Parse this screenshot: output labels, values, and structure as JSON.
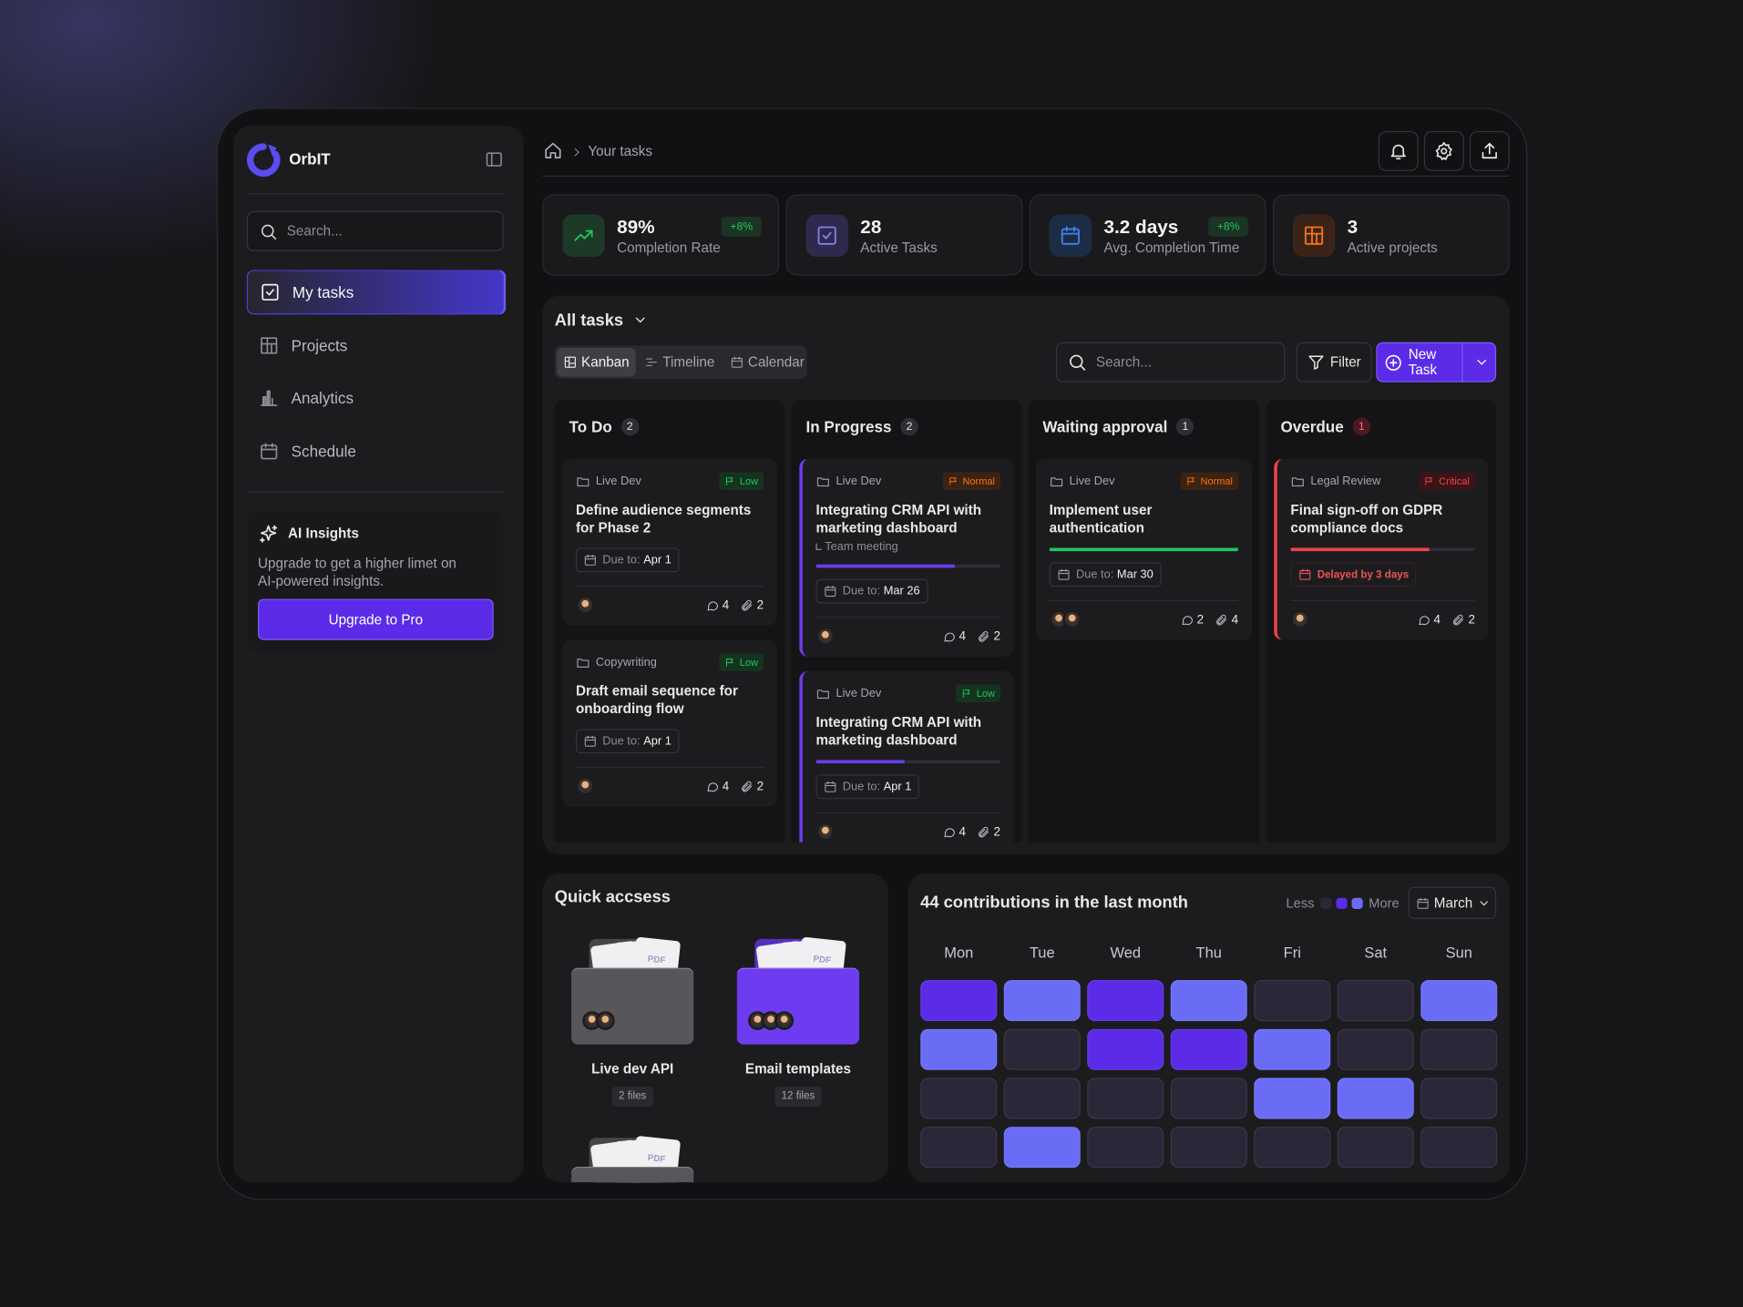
{
  "sidebar": {
    "brand": "OrbIT",
    "search_placeholder": "Search...",
    "nav": [
      "My tasks",
      "Projects",
      "Analytics",
      "Schedule"
    ],
    "insights": {
      "title": "AI Insights",
      "text": "Upgrade to get a higher limet on AI-powered insights.",
      "button": "Upgrade to Pro"
    }
  },
  "breadcrumb": {
    "current": "Your tasks"
  },
  "stats": [
    {
      "value": "89%",
      "label": "Completion Rate",
      "change": "+8%"
    },
    {
      "value": "28",
      "label": "Active Tasks"
    },
    {
      "value": "3.2 days",
      "label": "Avg. Completion Time",
      "change": "+8%"
    },
    {
      "value": "3",
      "label": "Active projects"
    }
  ],
  "tasks": {
    "title": "All tasks",
    "views": [
      "Kanban",
      "Timeline",
      "Calendar"
    ],
    "search_placeholder": "Search...",
    "filter": "Filter",
    "new_task": "New Task",
    "columns": [
      {
        "name": "To Do",
        "count": "2",
        "cards": [
          {
            "project": "Live Dev",
            "priority": "Low",
            "title": "Define audience segments for Phase 2",
            "due_label": "Due to:",
            "due": "Apr 1",
            "assignees": 1,
            "comments": "4",
            "attachments": "2"
          },
          {
            "project": "Copywriting",
            "priority": "Low",
            "title": "Draft email sequence for onboarding flow",
            "due_label": "Due to:",
            "due": "Apr 1",
            "assignees": 1,
            "comments": "4",
            "attachments": "2"
          }
        ]
      },
      {
        "name": "In Progress",
        "count": "2",
        "accent": "#6d3cf0",
        "border": true,
        "cards": [
          {
            "project": "Live Dev",
            "priority": "Normal",
            "title": "Integrating CRM API with marketing dashboard",
            "subtitle": "Team meeting",
            "progress": 75,
            "due_label": "Due to:",
            "due": "Mar 26",
            "assignees": 1,
            "comments": "4",
            "attachments": "2"
          },
          {
            "project": "Live Dev",
            "priority": "Low",
            "title": "Integrating CRM API with marketing dashboard",
            "progress": 48,
            "due_label": "Due to:",
            "due": "Apr 1",
            "assignees": 1,
            "comments": "4",
            "attachments": "2"
          }
        ]
      },
      {
        "name": "Waiting approval",
        "count": "1",
        "accent": "#22c55e",
        "cards": [
          {
            "project": "Live Dev",
            "priority": "Normal",
            "title": "Implement user authentication",
            "progress": 100,
            "due_label": "Due to:",
            "due": "Mar 30",
            "assignees": 2,
            "comments": "2",
            "attachments": "4"
          }
        ]
      },
      {
        "name": "Overdue",
        "count": "1",
        "accent": "#ef4444",
        "border": true,
        "alert": true,
        "cards": [
          {
            "project": "Legal Review",
            "priority": "Critical",
            "title": "Final sign-off on GDPR compliance docs",
            "progress": 75,
            "delay": "Delayed by 3 days",
            "assignees": 1,
            "comments": "4",
            "attachments": "2"
          }
        ]
      }
    ]
  },
  "quick_access": {
    "title": "Quick accsess",
    "file_label": "PDF",
    "folders": [
      {
        "name": "Live dev API",
        "files": "2 files",
        "color": "#57575b",
        "assignees": 2
      },
      {
        "name": "Email templates",
        "files": "12 files",
        "color": "#6d3cf0",
        "assignees": 3
      }
    ]
  },
  "contributions": {
    "title": "44 contributions in the last month",
    "legend": {
      "less": "Less",
      "more": "More"
    },
    "month": "March",
    "days": [
      "Mon",
      "Tue",
      "Wed",
      "Thu",
      "Fri",
      "Sat",
      "Sun"
    ],
    "level_colors": [
      "#2b2638",
      "#5b2be8",
      "#6b6cf6"
    ],
    "levels": [
      [
        1,
        2,
        1,
        2,
        0,
        0,
        2
      ],
      [
        2,
        0,
        1,
        1,
        2,
        0,
        0
      ],
      [
        0,
        0,
        0,
        0,
        2,
        2,
        0
      ],
      [
        0,
        2,
        0,
        0,
        0,
        0,
        0
      ]
    ]
  }
}
